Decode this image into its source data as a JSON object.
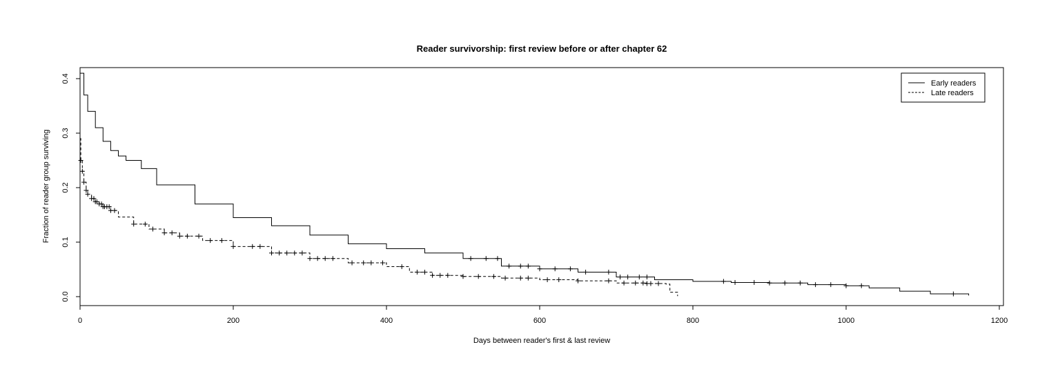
{
  "chart_data": {
    "type": "line",
    "title": "Reader survivorship: first review before or after chapter 62",
    "xlabel": "Days between reader's first & last review",
    "ylabel": "Fraction of reader group surviving",
    "xlim": [
      0,
      1200
    ],
    "ylim": [
      0.0,
      0.4
    ],
    "x_ticks": [
      "0",
      "200",
      "400",
      "600",
      "800",
      "1000",
      "1200"
    ],
    "y_ticks": [
      "0.0",
      "0.1",
      "0.2",
      "0.3",
      "0.4"
    ],
    "legend_position": "top-right",
    "grid": false,
    "series": [
      {
        "name": "Early readers",
        "line_style": "solid",
        "color": "#000000",
        "x": [
          0,
          5,
          10,
          20,
          30,
          40,
          50,
          60,
          80,
          100,
          150,
          200,
          250,
          300,
          350,
          400,
          450,
          500,
          550,
          600,
          650,
          700,
          750,
          800,
          850,
          900,
          950,
          1000,
          1030,
          1070,
          1110,
          1160
        ],
        "y": [
          0.41,
          0.37,
          0.34,
          0.31,
          0.285,
          0.268,
          0.258,
          0.25,
          0.235,
          0.205,
          0.17,
          0.145,
          0.13,
          0.113,
          0.097,
          0.088,
          0.08,
          0.07,
          0.056,
          0.051,
          0.045,
          0.036,
          0.031,
          0.028,
          0.026,
          0.025,
          0.022,
          0.02,
          0.016,
          0.01,
          0.005,
          0.002
        ],
        "censor_x": [
          510,
          530,
          545,
          560,
          575,
          585,
          600,
          620,
          640,
          660,
          690,
          705,
          715,
          730,
          740,
          840,
          855,
          880,
          900,
          920,
          940,
          960,
          980,
          1000,
          1020,
          1140
        ]
      },
      {
        "name": "Late readers",
        "line_style": "dashed",
        "color": "#000000",
        "x": [
          0,
          1,
          3,
          5,
          8,
          10,
          15,
          20,
          25,
          30,
          40,
          50,
          70,
          90,
          110,
          130,
          160,
          200,
          250,
          300,
          350,
          400,
          430,
          460,
          500,
          550,
          600,
          650,
          700,
          740,
          765,
          770,
          780
        ],
        "y": [
          0.29,
          0.25,
          0.23,
          0.21,
          0.195,
          0.188,
          0.18,
          0.174,
          0.17,
          0.165,
          0.158,
          0.146,
          0.133,
          0.124,
          0.117,
          0.111,
          0.103,
          0.092,
          0.08,
          0.07,
          0.062,
          0.055,
          0.045,
          0.039,
          0.037,
          0.034,
          0.031,
          0.029,
          0.025,
          0.024,
          0.023,
          0.008,
          0.001
        ],
        "censor_x": [
          1,
          3,
          5,
          8,
          10,
          15,
          18,
          20,
          22,
          25,
          28,
          30,
          32,
          35,
          38,
          40,
          45,
          70,
          85,
          95,
          110,
          120,
          130,
          140,
          155,
          170,
          185,
          200,
          225,
          235,
          250,
          260,
          270,
          280,
          290,
          300,
          310,
          320,
          330,
          355,
          370,
          380,
          395,
          420,
          440,
          450,
          460,
          470,
          480,
          500,
          520,
          540,
          555,
          575,
          585,
          610,
          625,
          650,
          690,
          710,
          725,
          735,
          740,
          745,
          755
        ]
      }
    ]
  }
}
